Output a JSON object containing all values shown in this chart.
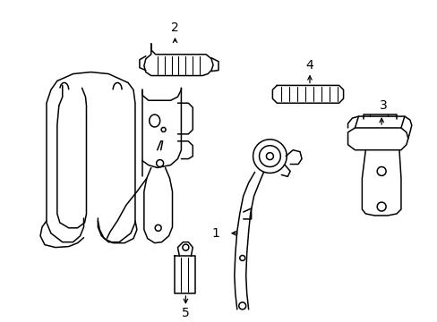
{
  "background_color": "#ffffff",
  "line_color": "#000000",
  "line_width": 1.1,
  "text_fontsize": 10
}
